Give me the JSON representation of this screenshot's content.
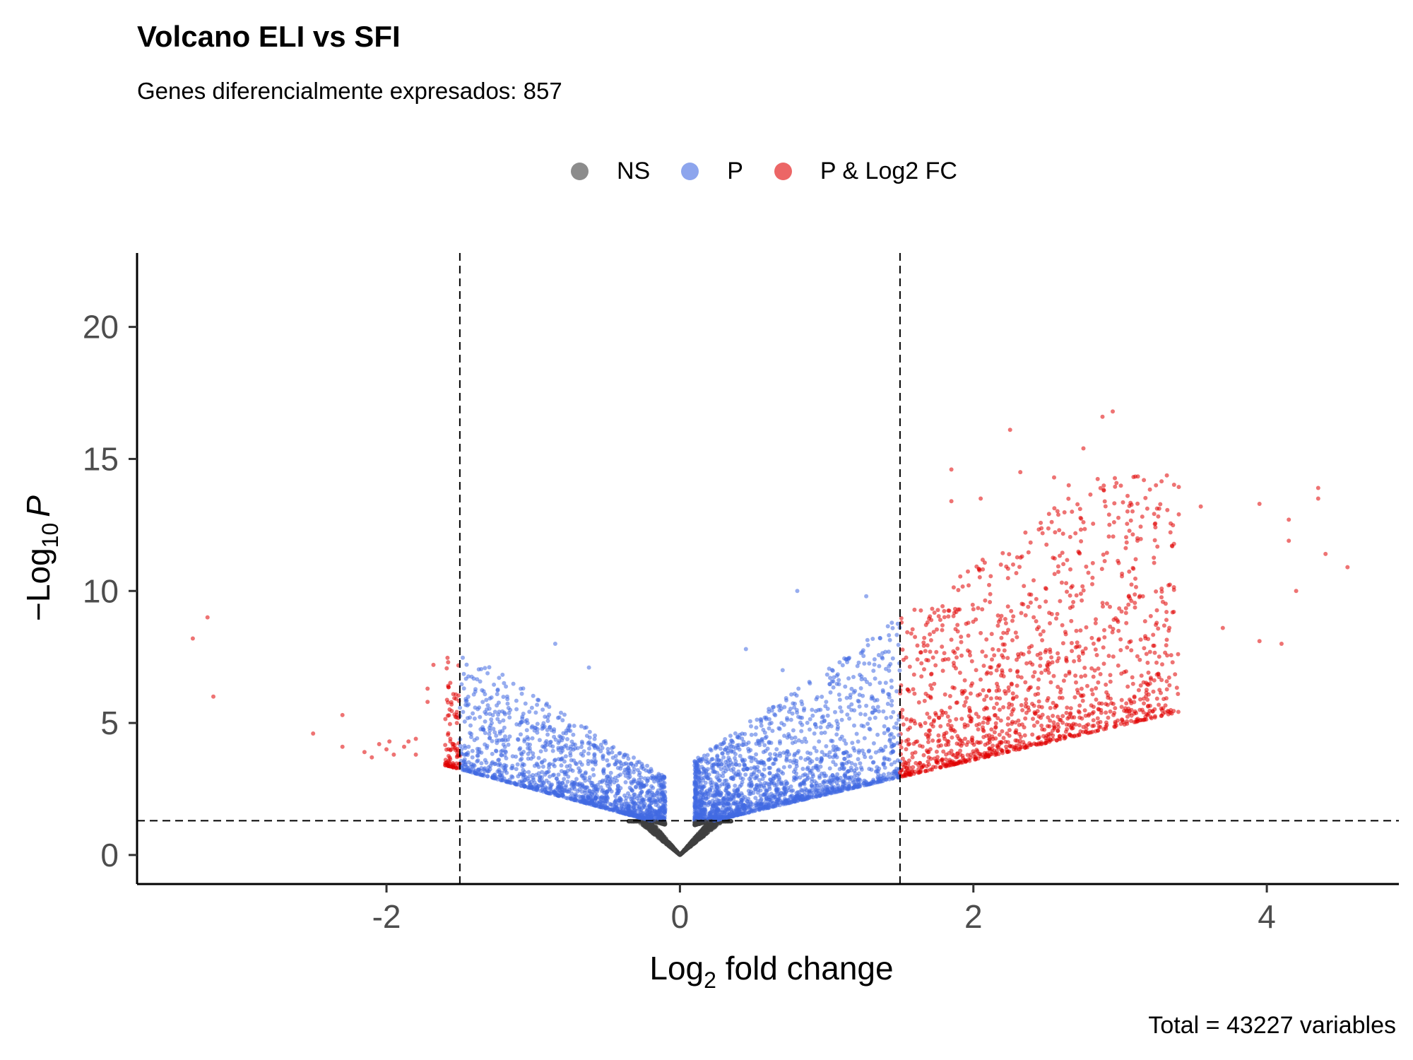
{
  "chart_data": {
    "type": "scatter",
    "title": "Volcano ELI vs SFI",
    "subtitle": "Genes diferencialmente expresados: 857",
    "caption": "Total = 43227 variables",
    "xlabel_main": "Log",
    "xlabel_sub": "2",
    "xlabel_rest": " fold change",
    "ylabel_prefix": "−Log",
    "ylabel_sub": "10",
    "ylabel_italic": "P",
    "xlim": [
      -3.7,
      4.9
    ],
    "ylim": [
      -1.1,
      22.8
    ],
    "x_ticks": [
      -2,
      0,
      2,
      4
    ],
    "y_ticks": [
      0,
      5,
      10,
      15,
      20
    ],
    "grid": false,
    "legend_position": "top",
    "cutoffs": {
      "log2fc": 1.5,
      "neg_log10_p": 1.3
    },
    "series": [
      {
        "name": "NS",
        "color": "#404040"
      },
      {
        "name": "P",
        "color": "#4169E1"
      },
      {
        "name": "P & Log2 FC",
        "color": "#E00000"
      }
    ],
    "highlight_points": [
      [
        -3.32,
        8.2
      ],
      [
        -3.22,
        9.0
      ],
      [
        -3.18,
        6.0
      ],
      [
        -2.5,
        4.6
      ],
      [
        -2.3,
        5.3
      ],
      [
        -2.3,
        4.1
      ],
      [
        -2.15,
        3.9
      ],
      [
        -2.1,
        3.7
      ],
      [
        -2.05,
        4.2
      ],
      [
        -2.0,
        4.0
      ],
      [
        -1.98,
        4.3
      ],
      [
        -1.95,
        3.8
      ],
      [
        -1.88,
        4.1
      ],
      [
        -1.85,
        4.3
      ],
      [
        -1.8,
        3.8
      ],
      [
        -1.8,
        4.4
      ],
      [
        -1.72,
        6.3
      ],
      [
        -1.72,
        5.8
      ],
      [
        -1.68,
        7.2
      ],
      [
        -1.6,
        3.4
      ],
      [
        -1.58,
        7.3
      ],
      [
        -1.55,
        4.2
      ],
      [
        -1.52,
        5.0
      ],
      [
        -1.52,
        3.3
      ],
      [
        0.8,
        10.0
      ],
      [
        1.27,
        9.8
      ],
      [
        0.45,
        7.8
      ],
      [
        0.7,
        7.0
      ],
      [
        -0.85,
        8.0
      ],
      [
        -0.62,
        7.1
      ],
      [
        1.85,
        14.6
      ],
      [
        1.85,
        13.4
      ],
      [
        2.05,
        13.5
      ],
      [
        2.25,
        16.1
      ],
      [
        2.32,
        14.5
      ],
      [
        2.55,
        14.3
      ],
      [
        2.65,
        14.0
      ],
      [
        2.75,
        15.4
      ],
      [
        2.88,
        16.6
      ],
      [
        2.95,
        16.8
      ],
      [
        3.4,
        12.9
      ],
      [
        3.55,
        13.2
      ],
      [
        3.95,
        13.3
      ],
      [
        4.15,
        12.7
      ],
      [
        4.15,
        11.9
      ],
      [
        4.35,
        13.9
      ],
      [
        4.35,
        13.5
      ],
      [
        4.4,
        11.4
      ],
      [
        4.55,
        10.9
      ],
      [
        4.2,
        10.0
      ],
      [
        4.1,
        8.0
      ],
      [
        3.95,
        8.1
      ],
      [
        3.7,
        8.6
      ]
    ]
  }
}
